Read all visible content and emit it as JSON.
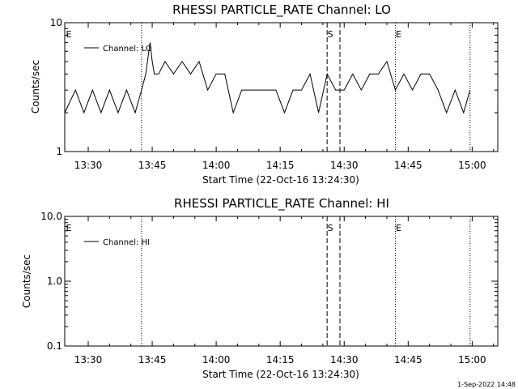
{
  "chart_data": [
    {
      "type": "line",
      "title": "RHESSI PARTICLE_RATE Channel: LO",
      "xlabel": "Start Time (22-Oct-16 13:24:30)",
      "ylabel": "Counts/sec",
      "yscale": "log",
      "xlim": [
        "13:24:30",
        "15:06:00"
      ],
      "ylim": [
        1,
        10
      ],
      "xticks": [
        "13:30",
        "13:45",
        "14:00",
        "14:15",
        "14:30",
        "14:45",
        "15:00"
      ],
      "yticks": [
        "1",
        "10"
      ],
      "grid": false,
      "legend": "top-left",
      "series": [
        {
          "name": "Channel: LO",
          "x": [
            "13:24:30",
            "13:27:00",
            "13:29:00",
            "13:31:00",
            "13:33:00",
            "13:35:00",
            "13:37:00",
            "13:39:00",
            "13:41:00",
            "13:42:30",
            "13:43:30",
            "13:44:30",
            "13:45:00",
            "13:45:30",
            "13:46:30",
            "13:48:00",
            "13:50:00",
            "13:52:00",
            "13:54:00",
            "13:56:00",
            "13:58:00",
            "14:00:00",
            "14:02:00",
            "14:04:00",
            "14:06:00",
            "14:08:00",
            "14:10:00",
            "14:12:00",
            "14:14:00",
            "14:16:00",
            "14:18:00",
            "14:20:00",
            "14:22:00",
            "14:24:00",
            "14:26:00",
            "14:28:00",
            "14:30:00",
            "14:32:00",
            "14:34:00",
            "14:36:00",
            "14:38:00",
            "14:40:00",
            "14:42:00",
            "14:44:00",
            "14:46:00",
            "14:48:00",
            "14:50:00",
            "14:52:00",
            "14:54:00",
            "14:56:00",
            "14:58:00",
            "14:59:30"
          ],
          "values": [
            2,
            3,
            2,
            3,
            2,
            3,
            2,
            3,
            2,
            3,
            4,
            7,
            5,
            4,
            4,
            5,
            4,
            5,
            4,
            5,
            3,
            4,
            4,
            2,
            3,
            3,
            3,
            3,
            3,
            2,
            3,
            3,
            4,
            2,
            4,
            3,
            3,
            4,
            3,
            4,
            4,
            5,
            3,
            4,
            3,
            4,
            4,
            3,
            2,
            3,
            2,
            3
          ]
        }
      ]
    },
    {
      "type": "line",
      "title": "RHESSI PARTICLE_RATE Channel: HI",
      "xlabel": "Start Time (22-Oct-16 13:24:30)",
      "ylabel": "Counts/sec",
      "yscale": "log",
      "xlim": [
        "13:24:30",
        "15:06:00"
      ],
      "ylim": [
        0.1,
        10
      ],
      "xticks": [
        "13:30",
        "13:45",
        "14:00",
        "14:15",
        "14:30",
        "14:45",
        "15:00"
      ],
      "yticks": [
        "0.1",
        "1.0",
        "10.0"
      ],
      "grid": false,
      "legend": "top-left",
      "series": [
        {
          "name": "Channel: HI",
          "x": [],
          "values": []
        }
      ]
    }
  ],
  "markers": {
    "left_e": {
      "label": "E"
    },
    "s": {
      "label": "S"
    },
    "e": {
      "label": "E"
    }
  },
  "timestamp": "1-Sep-2022 14:48"
}
